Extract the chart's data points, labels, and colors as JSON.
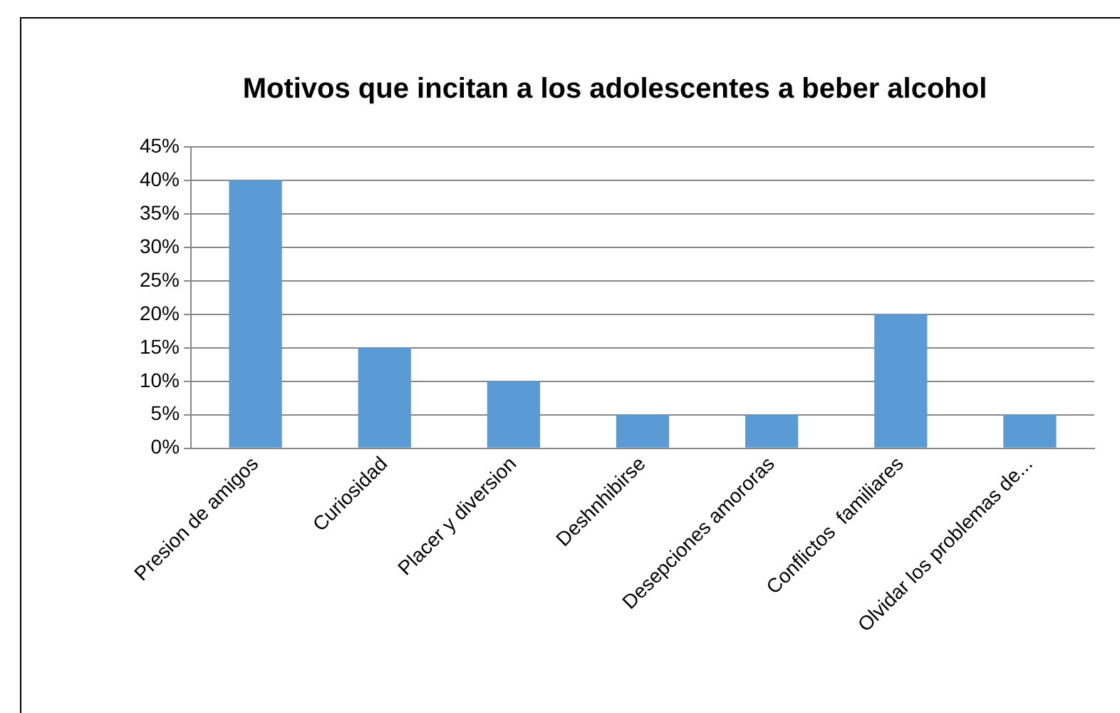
{
  "chart_data": {
    "type": "bar",
    "title": "Motivos que incitan a los adolescentes a beber alcohol",
    "categories": [
      "Presion de amigos",
      "Curiosidad",
      "Placer y diversion",
      "Deshnhibirse",
      "Desepciones amororas",
      "Conflictos  familiares",
      "Olvidar los problemas de..."
    ],
    "values": [
      40,
      15,
      10,
      5,
      5,
      20,
      5
    ],
    "color": "#5b9bd5",
    "ylim": [
      0,
      45
    ],
    "yticks": [
      {
        "value": 0,
        "label": "0%"
      },
      {
        "value": 5,
        "label": "5%"
      },
      {
        "value": 10,
        "label": "10%"
      },
      {
        "value": 15,
        "label": "15%"
      },
      {
        "value": 20,
        "label": "20%"
      },
      {
        "value": 25,
        "label": "25%"
      },
      {
        "value": 30,
        "label": "30%"
      },
      {
        "value": 35,
        "label": "35%"
      },
      {
        "value": 40,
        "label": "40%"
      },
      {
        "value": 45,
        "label": "45%"
      }
    ],
    "grid": "y",
    "legend": false
  }
}
